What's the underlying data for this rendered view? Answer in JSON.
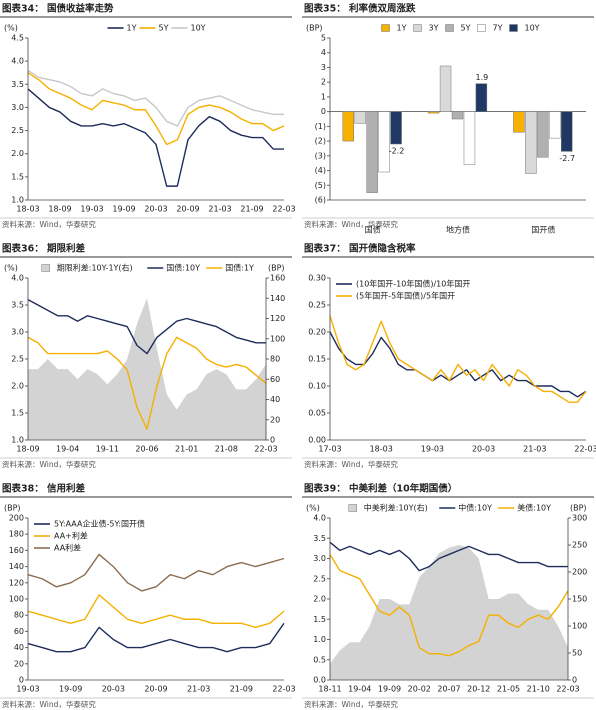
{
  "chart_data": [
    {
      "type": "line",
      "title": "图表34：  国债收益率走势",
      "source": "资料来源：Wind，华泰研究",
      "ylabel": "(%)",
      "legend": "top",
      "categories": [
        "18-03",
        null,
        null,
        "18-09",
        null,
        null,
        "19-03",
        null,
        null,
        "19-09",
        null,
        null,
        "20-03",
        null,
        null,
        "20-09",
        null,
        null,
        "21-03",
        null,
        null,
        "21-09",
        null,
        null,
        "22-03"
      ],
      "ylim": [
        1,
        4.5
      ],
      "yticks": [
        {
          "value": 1,
          "label": "1.0"
        },
        1.5,
        {
          "value": 2,
          "label": "2.0"
        },
        2.5,
        {
          "value": 3,
          "label": "3.0"
        },
        3.5,
        {
          "value": 4,
          "label": "4.0"
        },
        4.5
      ],
      "series": [
        {
          "name": "1Y",
          "color": "#1f2d5c",
          "values": [
            3.4,
            3.2,
            3.0,
            2.9,
            2.7,
            2.6,
            2.6,
            2.65,
            2.6,
            2.65,
            2.55,
            2.45,
            2.2,
            1.3,
            1.3,
            2.3,
            2.6,
            2.8,
            2.7,
            2.5,
            2.4,
            2.35,
            2.35,
            2.1,
            2.1
          ]
        },
        {
          "name": "5Y",
          "color": "#f5b000",
          "values": [
            3.75,
            3.6,
            3.4,
            3.3,
            3.2,
            3.05,
            2.95,
            3.15,
            3.1,
            3.05,
            2.95,
            2.95,
            2.6,
            2.2,
            2.3,
            2.85,
            3.0,
            3.05,
            3.0,
            2.9,
            2.75,
            2.65,
            2.65,
            2.5,
            2.6
          ]
        },
        {
          "name": "10Y",
          "color": "#c8c8c8",
          "values": [
            3.8,
            3.65,
            3.6,
            3.55,
            3.45,
            3.3,
            3.25,
            3.4,
            3.3,
            3.25,
            3.15,
            3.2,
            3.0,
            2.7,
            2.6,
            3.0,
            3.15,
            3.2,
            3.25,
            3.15,
            3.05,
            2.95,
            2.9,
            2.85,
            2.85
          ]
        }
      ]
    },
    {
      "type": "bar",
      "title": "图表35：  利率债双周涨跌",
      "source": "资料来源：Wind，华泰研究",
      "ylabel": "(BP)",
      "legend": "top",
      "categories": [
        "国债",
        "地方债",
        "国开债"
      ],
      "ylim": [
        -6,
        5
      ],
      "yticks": [
        5,
        4,
        3,
        2,
        1,
        0,
        {
          "value": -1,
          "label": "(1)"
        },
        {
          "value": -2,
          "label": "(2)"
        },
        {
          "value": -3,
          "label": "(3)"
        },
        {
          "value": -4,
          "label": "(4)"
        },
        {
          "value": -5,
          "label": "(5)"
        },
        {
          "value": -6,
          "label": "(6)"
        }
      ],
      "series": [
        {
          "name": "1Y",
          "color": "#f5b000",
          "values": [
            -2.0,
            -0.1,
            -1.4
          ]
        },
        {
          "name": "3Y",
          "color": "#d9d9d9",
          "values": [
            -0.8,
            3.1,
            -4.2
          ]
        },
        {
          "name": "5Y",
          "color": "#b0b0b0",
          "values": [
            -5.5,
            -0.5,
            -3.1
          ]
        },
        {
          "name": "7Y",
          "color": "#ffffff",
          "values": [
            -4.1,
            -3.6,
            -1.8
          ]
        },
        {
          "name": "10Y",
          "color": "#1f3864",
          "values": [
            -2.2,
            1.9,
            -2.7
          ],
          "data_labels": true
        }
      ]
    },
    {
      "type": "line",
      "title": "图表36：  期限利差",
      "source": "资料来源：Wind，华泰研究",
      "ylabel": "(%)",
      "y2label": "(BP)",
      "legend": "top",
      "categories": [
        "18-09",
        null,
        null,
        null,
        "19-04",
        null,
        null,
        null,
        "19-11",
        null,
        null,
        null,
        "20-06",
        null,
        null,
        null,
        "21-01",
        null,
        null,
        null,
        "21-08",
        null,
        null,
        null,
        "22-03"
      ],
      "ylim": [
        1,
        4
      ],
      "yticks": [
        {
          "value": 1,
          "label": "1.0"
        },
        1.5,
        {
          "value": 2,
          "label": "2.0"
        },
        2.5,
        {
          "value": 3,
          "label": "3.0"
        },
        3.5,
        {
          "value": 4,
          "label": "4.0"
        }
      ],
      "y2lim": [
        0,
        160
      ],
      "y2ticks": [
        0,
        20,
        40,
        60,
        80,
        100,
        120,
        140,
        160
      ],
      "series": [
        {
          "name": "期限利差:10Y-1Y(右)",
          "color": "#d3d3d3",
          "axis": "y2",
          "style": "area",
          "values": [
            70,
            70,
            80,
            70,
            70,
            60,
            70,
            65,
            55,
            65,
            80,
            115,
            140,
            90,
            45,
            30,
            45,
            50,
            65,
            70,
            65,
            50,
            50,
            60,
            75
          ]
        },
        {
          "name": "国债:10Y",
          "color": "#1f2d5c",
          "values": [
            3.6,
            3.5,
            3.4,
            3.3,
            3.3,
            3.2,
            3.3,
            3.25,
            3.2,
            3.15,
            3.1,
            2.75,
            2.6,
            2.9,
            3.05,
            3.2,
            3.25,
            3.2,
            3.15,
            3.1,
            3.0,
            2.9,
            2.85,
            2.8,
            2.8
          ]
        },
        {
          "name": "国债:1Y",
          "color": "#f5b000",
          "values": [
            2.9,
            2.8,
            2.6,
            2.6,
            2.6,
            2.6,
            2.6,
            2.6,
            2.65,
            2.5,
            2.3,
            1.6,
            1.2,
            2.0,
            2.6,
            2.9,
            2.8,
            2.7,
            2.5,
            2.4,
            2.35,
            2.4,
            2.35,
            2.2,
            2.05
          ]
        }
      ]
    },
    {
      "type": "line",
      "title": "图表37：  国开债隐含税率",
      "source": "资料来源：Wind，华泰研究",
      "legend": "upper left",
      "categories": [
        "17-03",
        null,
        null,
        null,
        null,
        null,
        "18-03",
        null,
        null,
        null,
        null,
        null,
        "19-03",
        null,
        null,
        null,
        null,
        null,
        "20-03",
        null,
        null,
        null,
        null,
        null,
        "21-03",
        null,
        null,
        null,
        null,
        null,
        "22-03"
      ],
      "ylim": [
        0,
        0.3
      ],
      "yticks": [
        {
          "value": 0,
          "label": "0.00"
        },
        0.05,
        {
          "value": 0.1,
          "label": "0.10"
        },
        0.15,
        {
          "value": 0.2,
          "label": "0.20"
        },
        0.25,
        {
          "value": 0.3,
          "label": "0.30"
        }
      ],
      "series": [
        {
          "name": "(10年国开-10年国债)/10年国开",
          "color": "#1f2d5c",
          "values": [
            0.2,
            0.17,
            0.15,
            0.14,
            0.14,
            0.16,
            0.19,
            0.17,
            0.14,
            0.13,
            0.13,
            0.12,
            0.11,
            0.12,
            0.11,
            0.12,
            0.13,
            0.11,
            0.12,
            0.13,
            0.11,
            0.12,
            0.11,
            0.11,
            0.1,
            0.1,
            0.1,
            0.09,
            0.09,
            0.08,
            0.09
          ]
        },
        {
          "name": "(5年国开-5年国债)/5年国开",
          "color": "#f5b000",
          "values": [
            0.23,
            0.18,
            0.14,
            0.13,
            0.14,
            0.18,
            0.22,
            0.18,
            0.15,
            0.14,
            0.13,
            0.12,
            0.11,
            0.13,
            0.11,
            0.14,
            0.12,
            0.13,
            0.11,
            0.14,
            0.12,
            0.1,
            0.13,
            0.12,
            0.1,
            0.09,
            0.09,
            0.08,
            0.07,
            0.07,
            0.09
          ]
        }
      ]
    },
    {
      "type": "line",
      "title": "图表38：  信用利差",
      "source": "资料来源：Wind，华泰研究",
      "ylabel": "(BP)",
      "legend": "upper left",
      "categories": [
        "19-03",
        null,
        null,
        "19-09",
        null,
        null,
        "20-03",
        null,
        null,
        "20-09",
        null,
        null,
        "21-03",
        null,
        null,
        "21-09",
        null,
        null,
        "22-03"
      ],
      "ylim": [
        0,
        200
      ],
      "yticks": [
        0,
        20,
        40,
        60,
        80,
        100,
        120,
        140,
        160,
        180,
        200
      ],
      "series": [
        {
          "name": "5Y:AAA企业债-5Y:国开债",
          "color": "#1f2d5c",
          "values": [
            45,
            40,
            35,
            35,
            40,
            65,
            50,
            40,
            40,
            45,
            50,
            45,
            40,
            40,
            35,
            40,
            40,
            45,
            70
          ]
        },
        {
          "name": "AA+利差",
          "color": "#f5b000",
          "values": [
            85,
            80,
            75,
            70,
            75,
            105,
            90,
            75,
            70,
            75,
            80,
            75,
            75,
            70,
            70,
            70,
            65,
            70,
            85
          ]
        },
        {
          "name": "AA利差",
          "color": "#8c6d4f",
          "values": [
            130,
            125,
            115,
            120,
            130,
            155,
            140,
            120,
            110,
            115,
            130,
            125,
            135,
            130,
            140,
            145,
            140,
            145,
            150
          ]
        }
      ]
    },
    {
      "type": "line",
      "title": "图表39：  中美利差（10年期国债）",
      "source": "资料来源：Wind，华泰研究",
      "ylabel": "(%)",
      "y2label": "(BP)",
      "legend": "top",
      "categories": [
        "18-11",
        null,
        null,
        "19-04",
        null,
        null,
        "19-09",
        null,
        null,
        "20-02",
        null,
        null,
        "20-07",
        null,
        null,
        "20-12",
        null,
        null,
        "21-05",
        null,
        null,
        "21-10",
        null,
        null,
        "22-03"
      ],
      "ylim": [
        0,
        4
      ],
      "yticks": [
        {
          "value": 0,
          "label": "0.0"
        },
        0.5,
        {
          "value": 1,
          "label": "1.0"
        },
        1.5,
        {
          "value": 2,
          "label": "2.0"
        },
        2.5,
        {
          "value": 3,
          "label": "3.0"
        },
        3.5,
        {
          "value": 4,
          "label": "4.0"
        }
      ],
      "y2lim": [
        0,
        300
      ],
      "y2ticks": [
        0,
        50,
        100,
        150,
        200,
        250,
        300
      ],
      "series": [
        {
          "name": "中美利差:10Y(右)",
          "color": "#d3d3d3",
          "axis": "y2",
          "style": "area",
          "values": [
            30,
            55,
            70,
            70,
            100,
            150,
            150,
            140,
            140,
            190,
            210,
            235,
            245,
            250,
            245,
            225,
            150,
            150,
            160,
            160,
            140,
            130,
            130,
            100,
            60
          ]
        },
        {
          "name": "中债:10Y",
          "color": "#1f2d5c",
          "values": [
            3.4,
            3.2,
            3.3,
            3.2,
            3.1,
            3.2,
            3.1,
            3.2,
            3.0,
            2.7,
            2.8,
            3.0,
            3.1,
            3.2,
            3.3,
            3.2,
            3.1,
            3.1,
            3.0,
            2.9,
            2.9,
            2.9,
            2.8,
            2.8,
            2.8
          ]
        },
        {
          "name": "美债:10Y",
          "color": "#f5b000",
          "values": [
            3.1,
            2.7,
            2.6,
            2.5,
            2.1,
            1.7,
            1.6,
            1.8,
            1.6,
            0.8,
            0.65,
            0.65,
            0.6,
            0.7,
            0.85,
            0.95,
            1.6,
            1.6,
            1.4,
            1.3,
            1.5,
            1.6,
            1.5,
            1.8,
            2.2
          ]
        }
      ]
    }
  ]
}
